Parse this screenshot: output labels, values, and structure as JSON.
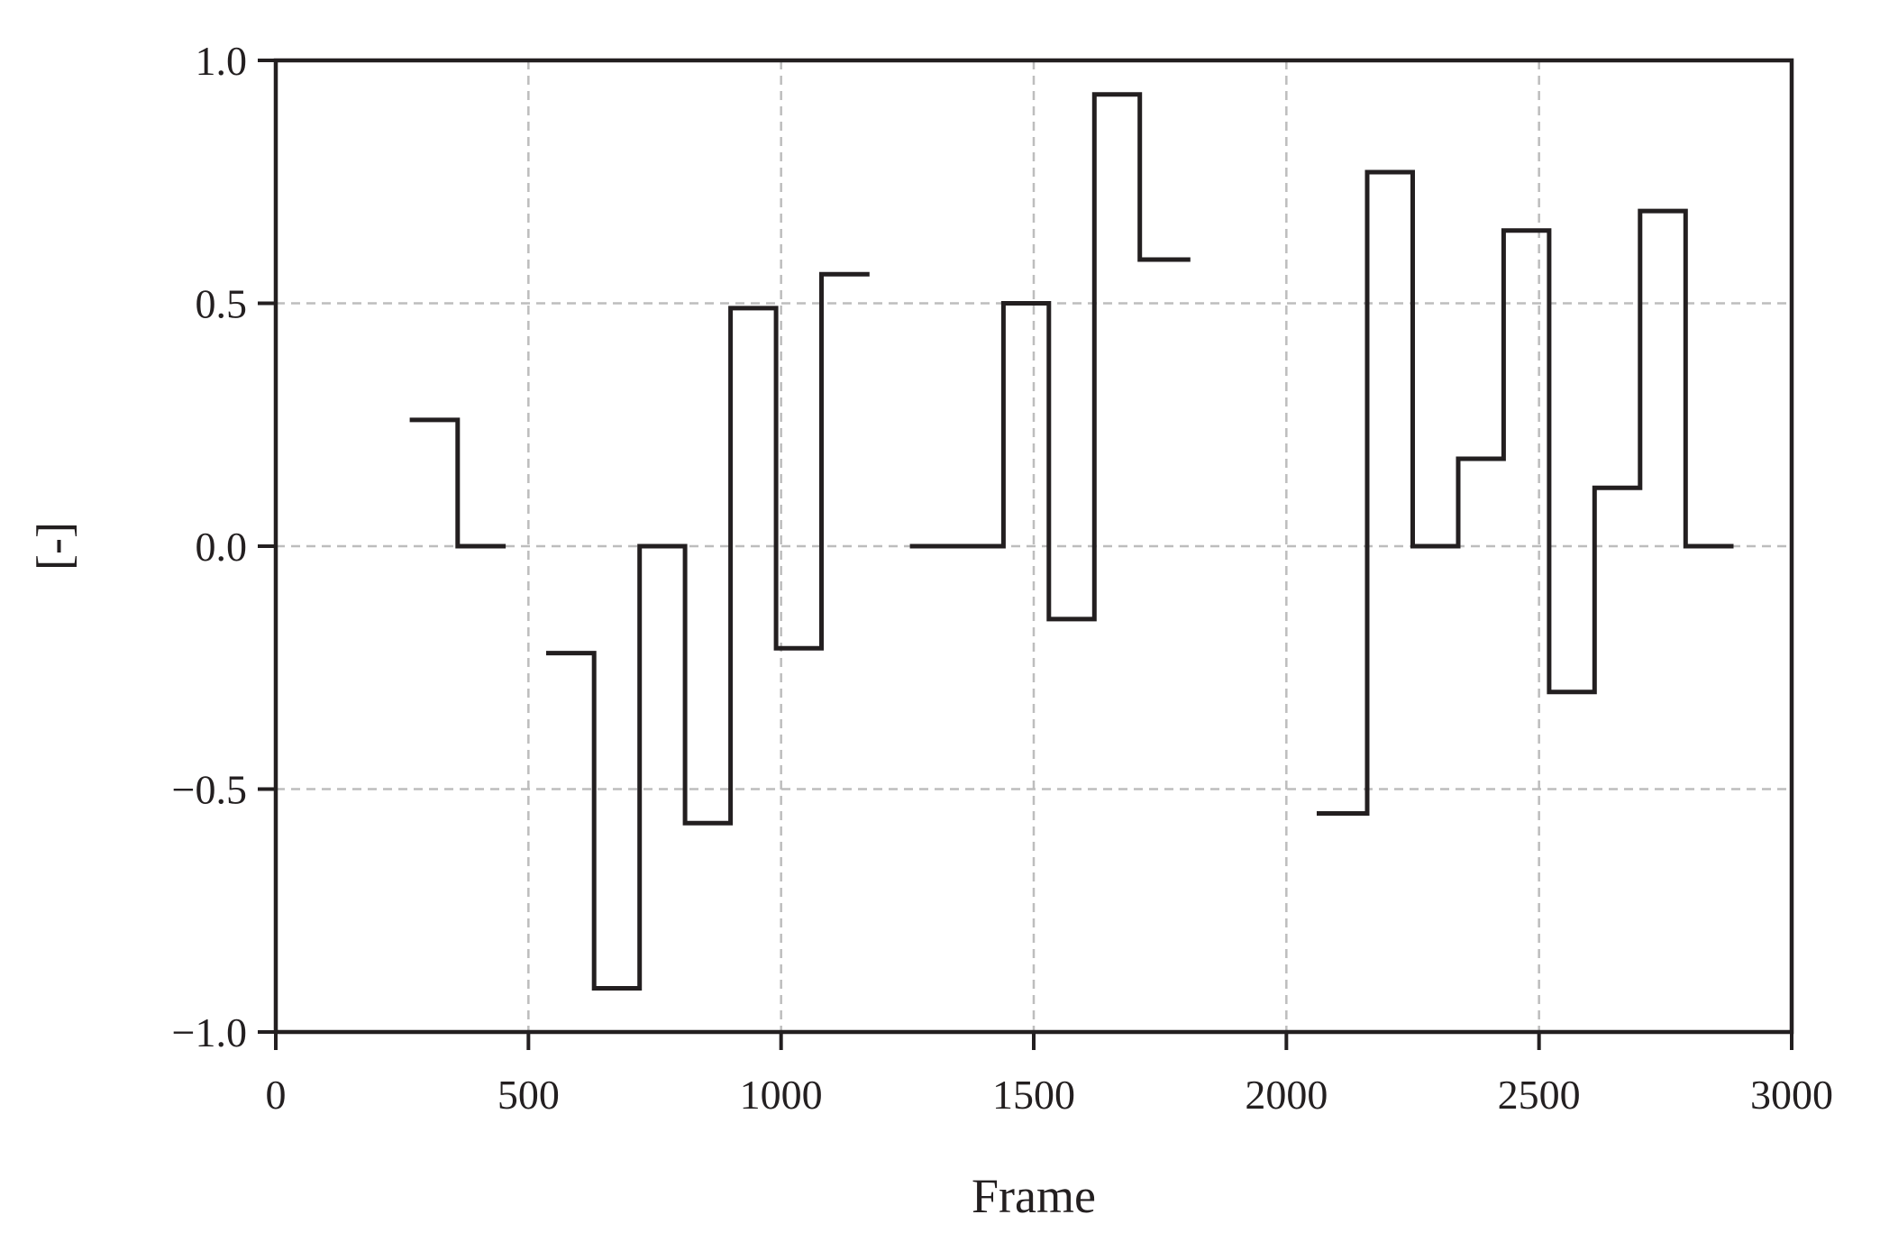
{
  "chart_data": {
    "type": "line",
    "title": "",
    "xlabel": "Frame",
    "ylabel": "[-]",
    "xlim": [
      0,
      3000
    ],
    "ylim": [
      -1.0,
      1.0
    ],
    "grid": true,
    "line_color": "#231f20",
    "grid_color": "#bdbdbd",
    "x_ticks": [
      0,
      500,
      1000,
      1500,
      2000,
      2500,
      3000
    ],
    "x_tick_labels": [
      "0",
      "500",
      "1000",
      "1500",
      "2000",
      "2500",
      "3000"
    ],
    "y_ticks": [
      -1.0,
      -0.5,
      0.0,
      0.5,
      1.0
    ],
    "y_tick_labels": [
      "−1.0",
      "−0.5",
      "0.0",
      "0.5",
      "1.0"
    ],
    "segments": [
      {
        "steps": [
          {
            "x": [
              265,
              360
            ],
            "y": 0.26
          },
          {
            "x": [
              360,
              455
            ],
            "y": 0.0
          }
        ]
      },
      {
        "steps": [
          {
            "x": [
              535,
              630
            ],
            "y": -0.22
          },
          {
            "x": [
              630,
              720
            ],
            "y": -0.91
          },
          {
            "x": [
              720,
              810
            ],
            "y": 0.0
          },
          {
            "x": [
              810,
              900
            ],
            "y": -0.57
          },
          {
            "x": [
              900,
              990
            ],
            "y": 0.49
          },
          {
            "x": [
              990,
              1080
            ],
            "y": -0.21
          },
          {
            "x": [
              1080,
              1175
            ],
            "y": 0.56
          }
        ]
      },
      {
        "steps": [
          {
            "x": [
              1255,
              1440
            ],
            "y": 0.0
          },
          {
            "x": [
              1440,
              1530
            ],
            "y": 0.5
          },
          {
            "x": [
              1530,
              1620
            ],
            "y": -0.15
          },
          {
            "x": [
              1620,
              1710
            ],
            "y": 0.93
          },
          {
            "x": [
              1710,
              1810
            ],
            "y": 0.59
          }
        ]
      },
      {
        "steps": [
          {
            "x": [
              2060,
              2160
            ],
            "y": -0.55
          },
          {
            "x": [
              2160,
              2250
            ],
            "y": 0.77
          },
          {
            "x": [
              2250,
              2340
            ],
            "y": 0.0
          },
          {
            "x": [
              2340,
              2430
            ],
            "y": 0.18
          },
          {
            "x": [
              2430,
              2520
            ],
            "y": 0.65
          },
          {
            "x": [
              2520,
              2610
            ],
            "y": -0.3
          },
          {
            "x": [
              2610,
              2700
            ],
            "y": 0.12
          },
          {
            "x": [
              2700,
              2790
            ],
            "y": 0.69
          },
          {
            "x": [
              2790,
              2885
            ],
            "y": 0.0
          }
        ]
      }
    ]
  }
}
